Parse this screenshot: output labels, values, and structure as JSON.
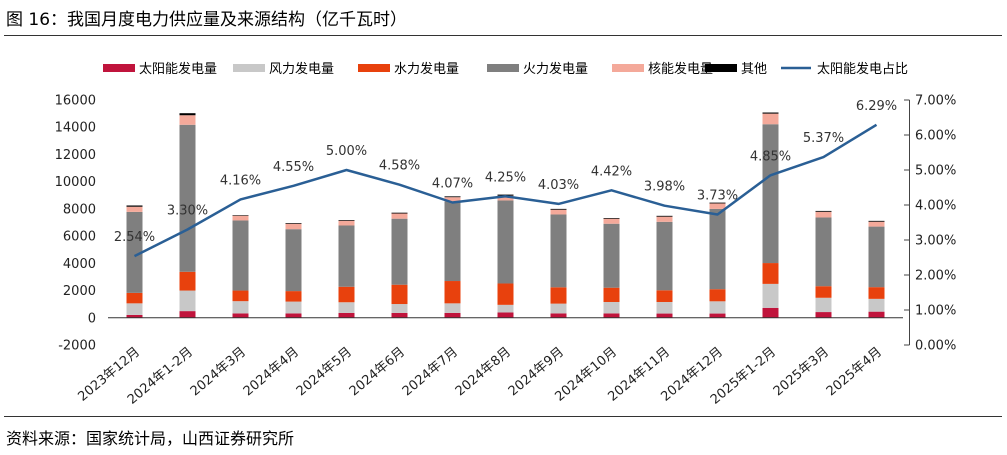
{
  "figure": {
    "title": "图 16：我国月度电力供应量及来源结构（亿千瓦时）",
    "source": "资料来源：国家统计局，山西证券研究所"
  },
  "chart_data": {
    "type": "bar",
    "stacked": true,
    "title": "图 16：我国月度电力供应量及来源结构（亿千瓦时）",
    "categories": [
      "2023年12月",
      "2024年1-2月",
      "2024年3月",
      "2024年4月",
      "2024年5月",
      "2024年6月",
      "2024年7月",
      "2024年8月",
      "2024年9月",
      "2024年10月",
      "2024年11月",
      "2024年12月",
      "2025年1-2月",
      "2025年3月",
      "2025年4月"
    ],
    "series": [
      {
        "name": "太阳能发电量",
        "color": "#c0143c",
        "values": [
          210,
          490,
          320,
          320,
          360,
          360,
          360,
          390,
          320,
          320,
          310,
          310,
          730,
          420,
          450
        ]
      },
      {
        "name": "风力发电量",
        "color": "#c8c8c8",
        "values": [
          850,
          1510,
          900,
          870,
          780,
          650,
          700,
          560,
          720,
          840,
          850,
          900,
          1760,
          1050,
          940
        ]
      },
      {
        "name": "水力发电量",
        "color": "#e8410d",
        "values": [
          770,
          1380,
          780,
          770,
          1140,
          1420,
          1640,
          1570,
          1200,
          1050,
          860,
          890,
          1530,
          850,
          860
        ]
      },
      {
        "name": "火力发电量",
        "color": "#7f7f7f",
        "values": [
          5950,
          10800,
          5150,
          4550,
          4500,
          4850,
          5850,
          6100,
          5350,
          4700,
          5030,
          5900,
          10200,
          5050,
          4450
        ]
      },
      {
        "name": "核能发电量",
        "color": "#f4a99a",
        "values": [
          380,
          700,
          350,
          400,
          350,
          380,
          310,
          350,
          350,
          370,
          380,
          400,
          780,
          420,
          360
        ]
      },
      {
        "name": "其他",
        "color": "#000000",
        "values": [
          90,
          150,
          40,
          50,
          50,
          60,
          60,
          80,
          60,
          50,
          60,
          60,
          80,
          60,
          60
        ]
      }
    ],
    "line_series": {
      "name": "太阳能发电占比",
      "color": "#2a5f95",
      "axis": "right",
      "values": [
        2.54,
        3.3,
        4.16,
        4.55,
        5.0,
        4.58,
        4.07,
        4.25,
        4.03,
        4.42,
        3.98,
        3.73,
        4.85,
        5.37,
        6.29
      ],
      "labels": [
        "2.54%",
        "3.30%",
        "4.16%",
        "4.55%",
        "5.00%",
        "4.58%",
        "4.07%",
        "4.25%",
        "4.03%",
        "4.42%",
        "3.98%",
        "3.73%",
        "4.85%",
        "5.37%",
        "6.29%"
      ]
    },
    "y_left": {
      "min": -2000,
      "max": 16000,
      "ticks": [
        -2000,
        0,
        2000,
        4000,
        6000,
        8000,
        10000,
        12000,
        14000,
        16000
      ]
    },
    "y_right": {
      "min": 0,
      "max": 7,
      "ticks": [
        0,
        1,
        2,
        3,
        4,
        5,
        6,
        7
      ],
      "tick_labels": [
        "0.00%",
        "1.00%",
        "2.00%",
        "3.00%",
        "4.00%",
        "5.00%",
        "6.00%",
        "7.00%"
      ]
    },
    "legend_position": "top",
    "grid": false
  }
}
